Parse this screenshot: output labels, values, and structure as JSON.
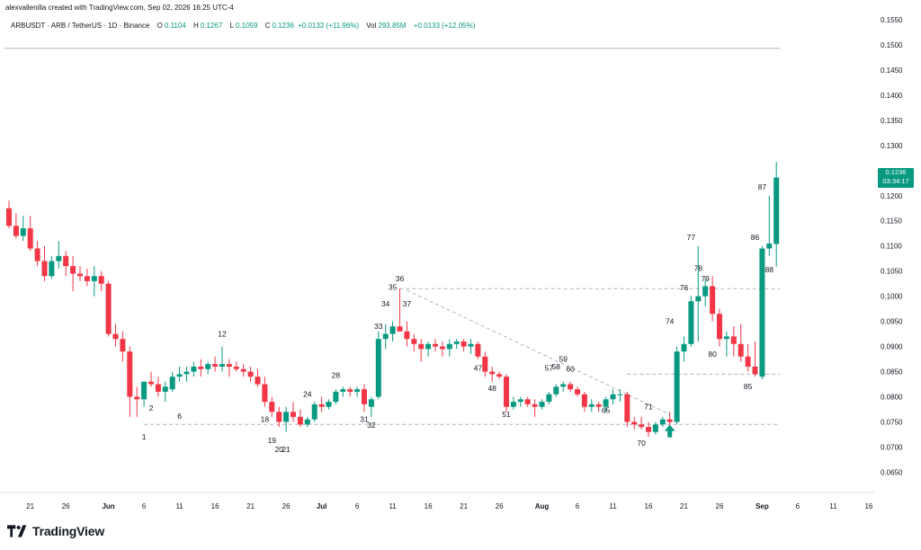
{
  "header": {
    "caption": "alexvallenilla created with TradingView.com, Sep 02, 2026 16:25 UTC-4"
  },
  "legend": {
    "symbol": "ARBUSDT · ARB / TetherUS · 1D · Binance",
    "o_label": "O",
    "o": "0.1104",
    "h_label": "H",
    "h": "0.1267",
    "l_label": "L",
    "l": "0.1059",
    "c_label": "C",
    "c": "0.1236",
    "change": "+0.0132 (+11.96%)",
    "vol_label": "Vol",
    "vol": "293.85M",
    "vol_change": "+0.0133 (+12.05%)"
  },
  "price_tag": {
    "price": "0.1236",
    "countdown": "03:34:17"
  },
  "footer": {
    "brand": "TradingView"
  },
  "colors": {
    "up": "#089981",
    "down": "#F23645",
    "grid_line": "#b2b5be"
  },
  "chart_data": {
    "type": "candlestick",
    "ylim": [
      0.0615,
      0.1575
    ],
    "y_ticks": [
      "0.0650",
      "0.0700",
      "0.0750",
      "0.0800",
      "0.0850",
      "0.0900",
      "0.0950",
      "0.1000",
      "0.1050",
      "0.1100",
      "0.1150",
      "0.1200",
      "0.1250",
      "0.1300",
      "0.1350",
      "0.1400",
      "0.1450",
      "0.1500",
      "0.1550"
    ],
    "x_ticks": [
      {
        "index": 3,
        "label": "21"
      },
      {
        "index": 8,
        "label": "26"
      },
      {
        "index": 14,
        "label": "Jun"
      },
      {
        "index": 19,
        "label": "6"
      },
      {
        "index": 24,
        "label": "11"
      },
      {
        "index": 29,
        "label": "16"
      },
      {
        "index": 34,
        "label": "21"
      },
      {
        "index": 39,
        "label": "26"
      },
      {
        "index": 44,
        "label": "Jul"
      },
      {
        "index": 49,
        "label": "6"
      },
      {
        "index": 54,
        "label": "11"
      },
      {
        "index": 59,
        "label": "16"
      },
      {
        "index": 64,
        "label": "21"
      },
      {
        "index": 69,
        "label": "26"
      },
      {
        "index": 75,
        "label": "Aug"
      },
      {
        "index": 80,
        "label": "6"
      },
      {
        "index": 85,
        "label": "11"
      },
      {
        "index": 90,
        "label": "16"
      },
      {
        "index": 95,
        "label": "21"
      },
      {
        "index": 100,
        "label": "26"
      },
      {
        "index": 106,
        "label": "Sep"
      },
      {
        "index": 111,
        "label": "6"
      },
      {
        "index": 116,
        "label": "11"
      },
      {
        "index": 121,
        "label": "16"
      }
    ],
    "candles": [
      [
        0.1175,
        0.119,
        0.1135,
        0.114
      ],
      [
        0.114,
        0.1165,
        0.1115,
        0.112
      ],
      [
        0.112,
        0.116,
        0.111,
        0.1135
      ],
      [
        0.1135,
        0.116,
        0.109,
        0.1095
      ],
      [
        0.1095,
        0.111,
        0.106,
        0.107
      ],
      [
        0.107,
        0.11,
        0.103,
        0.104
      ],
      [
        0.104,
        0.108,
        0.1035,
        0.107
      ],
      [
        0.107,
        0.111,
        0.1055,
        0.108
      ],
      [
        0.108,
        0.109,
        0.104,
        0.106
      ],
      [
        0.106,
        0.108,
        0.101,
        0.1045
      ],
      [
        0.1045,
        0.106,
        0.103,
        0.104
      ],
      [
        0.104,
        0.1055,
        0.102,
        0.103
      ],
      [
        0.103,
        0.106,
        0.1,
        0.104
      ],
      [
        0.104,
        0.105,
        0.101,
        0.1025
      ],
      [
        0.1025,
        0.103,
        0.092,
        0.0925
      ],
      [
        0.0925,
        0.0945,
        0.09,
        0.0915
      ],
      [
        0.0915,
        0.093,
        0.087,
        0.089
      ],
      [
        0.089,
        0.09,
        0.076,
        0.08
      ],
      [
        0.08,
        0.082,
        0.076,
        0.0795
      ],
      [
        0.0795,
        0.083,
        0.078,
        0.083
      ],
      [
        0.083,
        0.085,
        0.082,
        0.0825
      ],
      [
        0.0825,
        0.084,
        0.08,
        0.081
      ],
      [
        0.081,
        0.083,
        0.079,
        0.082
      ],
      [
        0.0815,
        0.085,
        0.081,
        0.084
      ],
      [
        0.084,
        0.086,
        0.083,
        0.0845
      ],
      [
        0.0845,
        0.086,
        0.083,
        0.085
      ],
      [
        0.085,
        0.087,
        0.084,
        0.086
      ],
      [
        0.086,
        0.0875,
        0.084,
        0.0855
      ],
      [
        0.0855,
        0.087,
        0.0845,
        0.0865
      ],
      [
        0.0865,
        0.088,
        0.085,
        0.086
      ],
      [
        0.086,
        0.09,
        0.085,
        0.0865
      ],
      [
        0.0865,
        0.0875,
        0.084,
        0.086
      ],
      [
        0.086,
        0.087,
        0.085,
        0.0855
      ],
      [
        0.0855,
        0.0865,
        0.084,
        0.085
      ],
      [
        0.085,
        0.086,
        0.083,
        0.084
      ],
      [
        0.084,
        0.0855,
        0.082,
        0.0825
      ],
      [
        0.0825,
        0.084,
        0.078,
        0.079
      ],
      [
        0.079,
        0.08,
        0.076,
        0.077
      ],
      [
        0.077,
        0.078,
        0.074,
        0.075
      ],
      [
        0.075,
        0.078,
        0.073,
        0.077
      ],
      [
        0.077,
        0.079,
        0.075,
        0.076
      ],
      [
        0.076,
        0.0775,
        0.074,
        0.0745
      ],
      [
        0.0745,
        0.076,
        0.074,
        0.0755
      ],
      [
        0.0755,
        0.079,
        0.075,
        0.0785
      ],
      [
        0.0785,
        0.08,
        0.077,
        0.078
      ],
      [
        0.078,
        0.0795,
        0.0775,
        0.079
      ],
      [
        0.079,
        0.0815,
        0.0785,
        0.081
      ],
      [
        0.081,
        0.082,
        0.08,
        0.0815
      ],
      [
        0.0815,
        0.082,
        0.08,
        0.081
      ],
      [
        0.081,
        0.082,
        0.08,
        0.0815
      ],
      [
        0.0815,
        0.0825,
        0.077,
        0.0785
      ],
      [
        0.078,
        0.08,
        0.076,
        0.0795
      ],
      [
        0.08,
        0.093,
        0.0795,
        0.0915
      ],
      [
        0.0915,
        0.0945,
        0.0895,
        0.0925
      ],
      [
        0.0925,
        0.095,
        0.091,
        0.094
      ],
      [
        0.094,
        0.1015,
        0.093,
        0.093
      ],
      [
        0.093,
        0.095,
        0.09,
        0.0915
      ],
      [
        0.0915,
        0.0925,
        0.089,
        0.0905
      ],
      [
        0.0905,
        0.0915,
        0.087,
        0.0895
      ],
      [
        0.0895,
        0.091,
        0.088,
        0.0905
      ],
      [
        0.0905,
        0.0915,
        0.089,
        0.09
      ],
      [
        0.09,
        0.091,
        0.088,
        0.0895
      ],
      [
        0.0895,
        0.0915,
        0.088,
        0.0905
      ],
      [
        0.0905,
        0.0915,
        0.0895,
        0.091
      ],
      [
        0.091,
        0.0915,
        0.089,
        0.09
      ],
      [
        0.09,
        0.0915,
        0.0885,
        0.0905
      ],
      [
        0.0905,
        0.091,
        0.0875,
        0.088
      ],
      [
        0.088,
        0.089,
        0.084,
        0.085
      ],
      [
        0.085,
        0.086,
        0.083,
        0.0845
      ],
      [
        0.0845,
        0.085,
        0.0835,
        0.084
      ],
      [
        0.084,
        0.0845,
        0.077,
        0.078
      ],
      [
        0.078,
        0.08,
        0.0775,
        0.079
      ],
      [
        0.079,
        0.08,
        0.078,
        0.0795
      ],
      [
        0.0795,
        0.08,
        0.078,
        0.0785
      ],
      [
        0.0785,
        0.0795,
        0.076,
        0.078
      ],
      [
        0.078,
        0.0795,
        0.0775,
        0.079
      ],
      [
        0.079,
        0.081,
        0.0785,
        0.0805
      ],
      [
        0.0805,
        0.0825,
        0.08,
        0.082
      ],
      [
        0.082,
        0.083,
        0.081,
        0.0825
      ],
      [
        0.0825,
        0.083,
        0.081,
        0.0815
      ],
      [
        0.0815,
        0.082,
        0.08,
        0.0805
      ],
      [
        0.0805,
        0.081,
        0.077,
        0.078
      ],
      [
        0.078,
        0.0795,
        0.077,
        0.0785
      ],
      [
        0.0785,
        0.079,
        0.077,
        0.078
      ],
      [
        0.078,
        0.08,
        0.077,
        0.0795
      ],
      [
        0.0795,
        0.0815,
        0.0785,
        0.0805
      ],
      [
        0.0805,
        0.0815,
        0.079,
        0.0805
      ],
      [
        0.0805,
        0.081,
        0.074,
        0.075
      ],
      [
        0.075,
        0.076,
        0.0735,
        0.0745
      ],
      [
        0.0745,
        0.076,
        0.0735,
        0.074
      ],
      [
        0.074,
        0.075,
        0.072,
        0.073
      ],
      [
        0.073,
        0.075,
        0.0725,
        0.0745
      ],
      [
        0.0745,
        0.076,
        0.074,
        0.0755
      ],
      [
        0.0755,
        0.077,
        0.074,
        0.075
      ],
      [
        0.075,
        0.09,
        0.0745,
        0.089
      ],
      [
        0.089,
        0.092,
        0.087,
        0.0905
      ],
      [
        0.0905,
        0.1,
        0.09,
        0.099
      ],
      [
        0.099,
        0.11,
        0.091,
        0.1
      ],
      [
        0.1,
        0.1035,
        0.098,
        0.102
      ],
      [
        0.102,
        0.104,
        0.095,
        0.0965
      ],
      [
        0.0965,
        0.0975,
        0.09,
        0.0915
      ],
      [
        0.0915,
        0.093,
        0.088,
        0.092
      ],
      [
        0.092,
        0.094,
        0.088,
        0.0905
      ],
      [
        0.0905,
        0.0945,
        0.087,
        0.088
      ],
      [
        0.088,
        0.0905,
        0.085,
        0.086
      ],
      [
        0.086,
        0.091,
        0.084,
        0.0845
      ],
      [
        0.084,
        0.11,
        0.0835,
        0.1095
      ],
      [
        0.1095,
        0.12,
        0.108,
        0.1105
      ],
      [
        0.1104,
        0.1267,
        0.1059,
        0.1236
      ]
    ],
    "horizontal_levels": [
      {
        "price": 0.1493,
        "style": "solid",
        "from": 0,
        "to": 108
      },
      {
        "price": 0.1015,
        "style": "dashed",
        "from": 55,
        "to": 108
      },
      {
        "price": 0.0845,
        "style": "dashed",
        "from": 87,
        "to": 108
      },
      {
        "price": 0.0745,
        "style": "dashed",
        "from": 19,
        "to": 108
      }
    ],
    "trendline": {
      "from": [
        56,
        0.1012
      ],
      "to": [
        93,
        0.0765
      ],
      "style": "dashed"
    },
    "annotations": [
      {
        "text": "1",
        "index": 19,
        "price": 0.0715
      },
      {
        "text": "2",
        "index": 20,
        "price": 0.0772
      },
      {
        "text": "6",
        "index": 24,
        "price": 0.0756
      },
      {
        "text": "12",
        "index": 30,
        "price": 0.092
      },
      {
        "text": "18",
        "index": 36,
        "price": 0.075
      },
      {
        "text": "19",
        "index": 37,
        "price": 0.0708
      },
      {
        "text": "20",
        "index": 38,
        "price": 0.069
      },
      {
        "text": "21",
        "index": 39,
        "price": 0.069
      },
      {
        "text": "24",
        "index": 42,
        "price": 0.08
      },
      {
        "text": "28",
        "index": 46,
        "price": 0.0838
      },
      {
        "text": "31",
        "index": 50,
        "price": 0.075
      },
      {
        "text": "32",
        "index": 51,
        "price": 0.0738
      },
      {
        "text": "33",
        "index": 52,
        "price": 0.0935
      },
      {
        "text": "34",
        "index": 53,
        "price": 0.098
      },
      {
        "text": "35",
        "index": 54,
        "price": 0.1013
      },
      {
        "text": "36",
        "index": 55,
        "price": 0.103
      },
      {
        "text": "37",
        "index": 56,
        "price": 0.098
      },
      {
        "text": "47",
        "index": 66,
        "price": 0.0852
      },
      {
        "text": "48",
        "index": 68,
        "price": 0.0812
      },
      {
        "text": "51",
        "index": 70,
        "price": 0.076
      },
      {
        "text": "57",
        "index": 76,
        "price": 0.0852
      },
      {
        "text": "58",
        "index": 77,
        "price": 0.0855
      },
      {
        "text": "59",
        "index": 78,
        "price": 0.087
      },
      {
        "text": "60",
        "index": 79,
        "price": 0.085
      },
      {
        "text": "65",
        "index": 84,
        "price": 0.0768
      },
      {
        "text": "70",
        "index": 89,
        "price": 0.0703
      },
      {
        "text": "71",
        "index": 90,
        "price": 0.0775
      },
      {
        "text": "74",
        "index": 93,
        "price": 0.0945
      },
      {
        "text": "76",
        "index": 95,
        "price": 0.1012
      },
      {
        "text": "77",
        "index": 96,
        "price": 0.1112
      },
      {
        "text": "78",
        "index": 97,
        "price": 0.105
      },
      {
        "text": "79",
        "index": 98,
        "price": 0.103
      },
      {
        "text": "80",
        "index": 99,
        "price": 0.088
      },
      {
        "text": "85",
        "index": 104,
        "price": 0.0815
      },
      {
        "text": "86",
        "index": 105,
        "price": 0.1112
      },
      {
        "text": "87",
        "index": 106,
        "price": 0.1212
      },
      {
        "text": "88",
        "index": 107,
        "price": 0.1048
      }
    ],
    "arrow": {
      "index": 93,
      "price": 0.073,
      "direction": "up"
    }
  }
}
